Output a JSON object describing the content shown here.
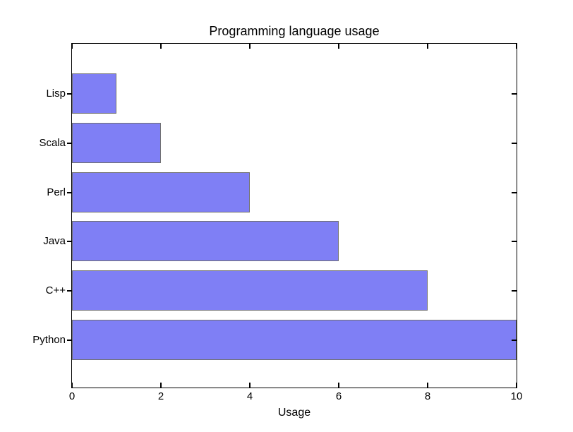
{
  "chart_data": {
    "type": "bar",
    "orientation": "horizontal",
    "title": "Programming language usage",
    "xlabel": "Usage",
    "ylabel": "",
    "categories": [
      "Lisp",
      "Scala",
      "Perl",
      "Java",
      "C++",
      "Python"
    ],
    "values": [
      1,
      2,
      4,
      6,
      8,
      10
    ],
    "xlim": [
      0,
      10
    ],
    "xticks": [
      0,
      2,
      4,
      6,
      8,
      10
    ],
    "grid": false,
    "legend": false,
    "bar_color": "#7f7ff5",
    "bar_edge_color": "#707070",
    "axis_color": "#000000",
    "background_color": "#ffffff"
  }
}
